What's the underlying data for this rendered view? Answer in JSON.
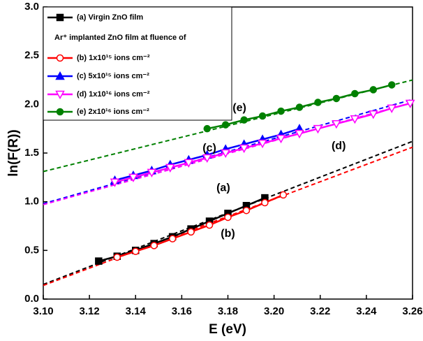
{
  "chart_data": {
    "type": "line",
    "x_label": "E (eV)",
    "y_label": "ln(F(R))",
    "xlim": [
      3.1,
      3.26
    ],
    "ylim": [
      0.0,
      3.0
    ],
    "xticks": [
      {
        "value": 3.1,
        "label": "3.10"
      },
      {
        "value": 3.12,
        "label": "3.12"
      },
      {
        "value": 3.14,
        "label": "3.14"
      },
      {
        "value": 3.16,
        "label": "3.16"
      },
      {
        "value": 3.18,
        "label": "3.18"
      },
      {
        "value": 3.2,
        "label": "3.20"
      },
      {
        "value": 3.22,
        "label": "3.22"
      },
      {
        "value": 3.24,
        "label": "3.24"
      },
      {
        "value": 3.26,
        "label": "3.26"
      }
    ],
    "yticks": [
      {
        "value": 0.0,
        "label": "0.0"
      },
      {
        "value": 0.5,
        "label": "0.5"
      },
      {
        "value": 1.0,
        "label": "1.0"
      },
      {
        "value": 1.5,
        "label": "1.5"
      },
      {
        "value": 2.0,
        "label": "2.0"
      },
      {
        "value": 2.5,
        "label": "2.5"
      },
      {
        "value": 3.0,
        "label": "3.0"
      }
    ],
    "legend_heading": "Ar⁺ implanted ZnO film at fluence of",
    "series": [
      {
        "name": "(a) Virgin ZnO film",
        "color": "#000000",
        "marker": "square",
        "filled": true,
        "x": [
          3.124,
          3.132,
          3.14,
          3.148,
          3.156,
          3.164,
          3.172,
          3.18,
          3.188,
          3.196
        ],
        "values": [
          0.39,
          0.44,
          0.5,
          0.57,
          0.64,
          0.72,
          0.8,
          0.88,
          0.96,
          1.04
        ]
      },
      {
        "name": "(b) 1x10¹⁵ ions cm⁻²",
        "color": "#ff0000",
        "marker": "circle",
        "filled": false,
        "x": [
          3.132,
          3.14,
          3.148,
          3.156,
          3.164,
          3.172,
          3.18,
          3.188,
          3.196,
          3.204
        ],
        "values": [
          0.43,
          0.49,
          0.55,
          0.62,
          0.69,
          0.76,
          0.84,
          0.91,
          0.99,
          1.07
        ]
      },
      {
        "name": "(c) 5x10¹⁵ ions cm⁻²",
        "color": "#0000ff",
        "marker": "triangle-up",
        "filled": true,
        "x": [
          3.131,
          3.139,
          3.147,
          3.155,
          3.163,
          3.171,
          3.179,
          3.187,
          3.195,
          3.203,
          3.211
        ],
        "values": [
          1.22,
          1.27,
          1.32,
          1.38,
          1.43,
          1.48,
          1.54,
          1.59,
          1.64,
          1.69,
          1.75
        ]
      },
      {
        "name": "(d) 1x10¹⁶ ions cm⁻²",
        "color": "#ff00ff",
        "marker": "triangle-down",
        "filled": false,
        "x": [
          3.131,
          3.139,
          3.147,
          3.155,
          3.163,
          3.171,
          3.179,
          3.187,
          3.195,
          3.203,
          3.211,
          3.219,
          3.227,
          3.235,
          3.243,
          3.251,
          3.259
        ],
        "values": [
          1.2,
          1.25,
          1.3,
          1.35,
          1.4,
          1.45,
          1.5,
          1.55,
          1.6,
          1.65,
          1.7,
          1.75,
          1.8,
          1.85,
          1.9,
          1.96,
          2.01
        ]
      },
      {
        "name": "(e) 2x10¹⁶ ions cm⁻²",
        "color": "#008000",
        "marker": "circle",
        "filled": true,
        "x": [
          3.171,
          3.179,
          3.187,
          3.195,
          3.203,
          3.211,
          3.219,
          3.227,
          3.235,
          3.243,
          3.251
        ],
        "values": [
          1.75,
          1.79,
          1.84,
          1.88,
          1.93,
          1.97,
          2.02,
          2.06,
          2.11,
          2.15,
          2.2
        ]
      }
    ],
    "fit_lines": [
      {
        "color": "#000000",
        "x": [
          3.1,
          3.26
        ],
        "values": [
          0.15,
          1.62
        ]
      },
      {
        "color": "#ff0000",
        "x": [
          3.1,
          3.26
        ],
        "values": [
          0.14,
          1.56
        ]
      },
      {
        "color": "#0000ff",
        "x": [
          3.1,
          3.26
        ],
        "values": [
          0.98,
          2.05
        ]
      },
      {
        "color": "#ff00ff",
        "x": [
          3.1,
          3.26
        ],
        "values": [
          0.97,
          2.02
        ]
      },
      {
        "color": "#008000",
        "x": [
          3.1,
          3.26
        ],
        "values": [
          1.31,
          2.25
        ]
      }
    ],
    "annotations": [
      "(a)",
      "(b)",
      "(c)",
      "(d)",
      "(e)"
    ]
  }
}
